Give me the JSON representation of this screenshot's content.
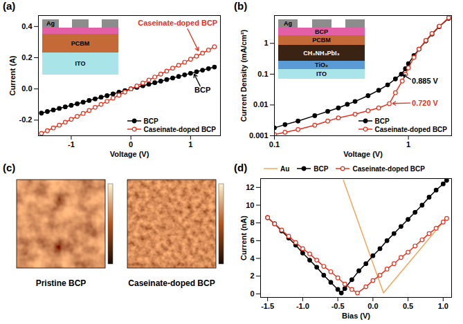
{
  "chart_data": [
    {
      "label": "(a)",
      "type": "line",
      "xlabel": "Voltage (V)",
      "ylabel": "Current (A)",
      "xlim": [
        -1.55,
        1.5
      ],
      "xticks": [
        -1,
        0,
        1
      ],
      "ylim": [
        -0.3,
        0.47
      ],
      "yticks": [
        -0.2,
        {
          "value": 0,
          "label": "0.0"
        },
        0.2,
        0.4
      ],
      "legend": "bottom-right",
      "x": [
        -1.5,
        -1.4,
        -1.3,
        -1.2,
        -1.1,
        -1.0,
        -0.9,
        -0.8,
        -0.7,
        -0.6,
        -0.5,
        -0.4,
        -0.3,
        -0.2,
        -0.1,
        0,
        0.1,
        0.2,
        0.3,
        0.4,
        0.5,
        0.6,
        0.7,
        0.8,
        0.9,
        1.0,
        1.1,
        1.2,
        1.3,
        1.4
      ],
      "series": [
        {
          "name": "BCP",
          "color": "#000000",
          "marker": "circle",
          "values": [
            -0.155,
            -0.145,
            -0.135,
            -0.125,
            -0.115,
            -0.105,
            -0.095,
            -0.085,
            -0.074,
            -0.064,
            -0.053,
            -0.043,
            -0.032,
            -0.021,
            -0.011,
            0,
            0.01,
            0.02,
            0.03,
            0.04,
            0.05,
            0.06,
            0.07,
            0.08,
            0.09,
            0.1,
            0.11,
            0.12,
            0.13,
            0.14
          ]
        },
        {
          "name": "Caseinate-doped BCP",
          "color": "#e8301c",
          "marker": "open_circle",
          "values": [
            -0.285,
            -0.268,
            -0.25,
            -0.232,
            -0.213,
            -0.195,
            -0.176,
            -0.157,
            -0.138,
            -0.118,
            -0.099,
            -0.079,
            -0.059,
            -0.04,
            -0.02,
            0,
            0.019,
            0.038,
            0.057,
            0.076,
            0.095,
            0.114,
            0.133,
            0.152,
            0.171,
            0.19,
            0.21,
            0.229,
            0.249,
            0.27
          ]
        }
      ],
      "annotations": [
        {
          "text": "Caseinate-doped BCP",
          "color": "#e8301c"
        },
        {
          "text": "BCP",
          "color": "#000000"
        }
      ],
      "inset": {
        "layers": [
          {
            "label": "Ag",
            "color": "#8c8c8c"
          },
          {
            "label": null,
            "color": "#e35fa6"
          },
          {
            "label": "PCBM",
            "color": "#c46a36"
          },
          {
            "label": "ITO",
            "color": "#a8e4e8"
          }
        ]
      }
    },
    {
      "label": "(b)",
      "type": "line",
      "log": true,
      "xlabel": "Voltage (V)",
      "ylabel": "Current Density (mA/cm²)",
      "xlim": [
        0.1,
        2.1
      ],
      "xticks": [
        0.1,
        1
      ],
      "ylim": [
        0.001,
        8
      ],
      "yticks": [
        0.001,
        0.01,
        0.1,
        1
      ],
      "legend": "bottom-right",
      "series": [
        {
          "name": "BCP",
          "color": "#000000",
          "marker": "circle",
          "x": [
            0.1,
            0.12,
            0.15,
            0.2,
            0.25,
            0.3,
            0.35,
            0.4,
            0.5,
            0.6,
            0.7,
            0.8,
            0.885,
            0.95,
            1.0,
            1.1,
            1.2,
            1.35,
            1.5,
            1.7,
            2.0
          ],
          "values": [
            0.0018,
            0.0023,
            0.003,
            0.0045,
            0.0062,
            0.008,
            0.0105,
            0.013,
            0.02,
            0.03,
            0.045,
            0.07,
            0.1,
            0.15,
            0.22,
            0.4,
            0.65,
            1.2,
            2.0,
            3.5,
            6.5
          ]
        },
        {
          "name": "Caseinate-doped BCP",
          "color": "#e8301c",
          "marker": "open_circle",
          "x": [
            0.1,
            0.12,
            0.15,
            0.2,
            0.25,
            0.3,
            0.4,
            0.5,
            0.6,
            0.72,
            0.8,
            0.9,
            0.95,
            1.0,
            1.1,
            1.2,
            1.35,
            1.5,
            1.7,
            2.0
          ],
          "values": [
            0.0011,
            0.0013,
            0.0016,
            0.0022,
            0.003,
            0.0038,
            0.005,
            0.0065,
            0.008,
            0.011,
            0.025,
            0.06,
            0.1,
            0.16,
            0.35,
            0.65,
            1.25,
            2.1,
            3.6,
            6.8
          ]
        }
      ],
      "annotations": [
        {
          "text": "0.885 V",
          "color": "#000000"
        },
        {
          "text": "0.720 V",
          "color": "#e8301c"
        }
      ],
      "inset": {
        "layers": [
          {
            "label": "Ag",
            "color": "#8c8c8c"
          },
          {
            "label": "BCP",
            "color": "#e35fa6"
          },
          {
            "label": "PCBM",
            "color": "#c46a36"
          },
          {
            "label": "CH₃NH₃PbI₃",
            "color": "#3b2314"
          },
          {
            "label": "TiO₂",
            "color": "#5b9bd5"
          },
          {
            "label": "ITO",
            "color": "#a8e4e8"
          }
        ]
      }
    },
    {
      "label": "(c)",
      "type": "image",
      "images": [
        {
          "caption": "Pristine BCP"
        },
        {
          "caption": "Caseinate-doped BCP"
        }
      ]
    },
    {
      "label": "(d)",
      "type": "line",
      "xlabel": "Bias (V)",
      "ylabel": "Current (nA)",
      "xlim": [
        -1.6,
        1.12
      ],
      "xticks": [
        -1.5,
        {
          "value": -1,
          "label": "-1.0"
        },
        -0.5,
        {
          "value": 0,
          "label": "0.0"
        },
        0.5,
        {
          "value": 1,
          "label": "1.0"
        }
      ],
      "ylim": [
        -0.4,
        13
      ],
      "yticks": [
        0,
        2,
        4,
        6,
        8,
        10,
        12
      ],
      "legend": "top",
      "series": [
        {
          "name": "Au",
          "color": "#f5a45a",
          "marker": "none",
          "x": [
            -0.42,
            0.15,
            1.05
          ],
          "values": [
            12.8,
            0.1,
            8.6
          ]
        },
        {
          "name": "BCP",
          "color": "#000000",
          "marker": "circle",
          "x": [
            -1.5,
            -1.4,
            -1.3,
            -1.2,
            -1.1,
            -1.0,
            -0.9,
            -0.8,
            -0.7,
            -0.6,
            -0.5,
            -0.45,
            -0.4,
            -0.3,
            -0.2,
            -0.1,
            0,
            0.1,
            0.2,
            0.3,
            0.4,
            0.5,
            0.6,
            0.7,
            0.8,
            0.9,
            1.0,
            1.05
          ],
          "values": [
            8.6,
            7.9,
            7.1,
            6.3,
            5.5,
            4.6,
            3.8,
            3.0,
            2.1,
            1.3,
            0.5,
            0.1,
            0.6,
            1.6,
            2.6,
            3.4,
            4.3,
            5.1,
            6.0,
            6.8,
            7.6,
            8.4,
            9.2,
            10.0,
            10.9,
            11.7,
            12.4,
            12.8
          ]
        },
        {
          "name": "Caseinate-doped BCP",
          "color": "#e8301c",
          "marker": "open_circle",
          "x": [
            -1.5,
            -1.4,
            -1.3,
            -1.2,
            -1.1,
            -1.0,
            -0.9,
            -0.8,
            -0.7,
            -0.6,
            -0.5,
            -0.4,
            -0.3,
            -0.22,
            -0.1,
            0,
            0.1,
            0.2,
            0.3,
            0.4,
            0.5,
            0.6,
            0.7,
            0.8,
            0.9,
            1.0,
            1.05
          ],
          "values": [
            8.6,
            7.9,
            7.2,
            6.5,
            5.8,
            5.1,
            4.5,
            3.8,
            3.1,
            2.5,
            1.8,
            1.1,
            0.5,
            0.1,
            0.8,
            1.5,
            2.1,
            2.8,
            3.4,
            4.1,
            4.7,
            5.4,
            6.1,
            6.8,
            7.4,
            8.1,
            8.5
          ]
        }
      ]
    }
  ]
}
